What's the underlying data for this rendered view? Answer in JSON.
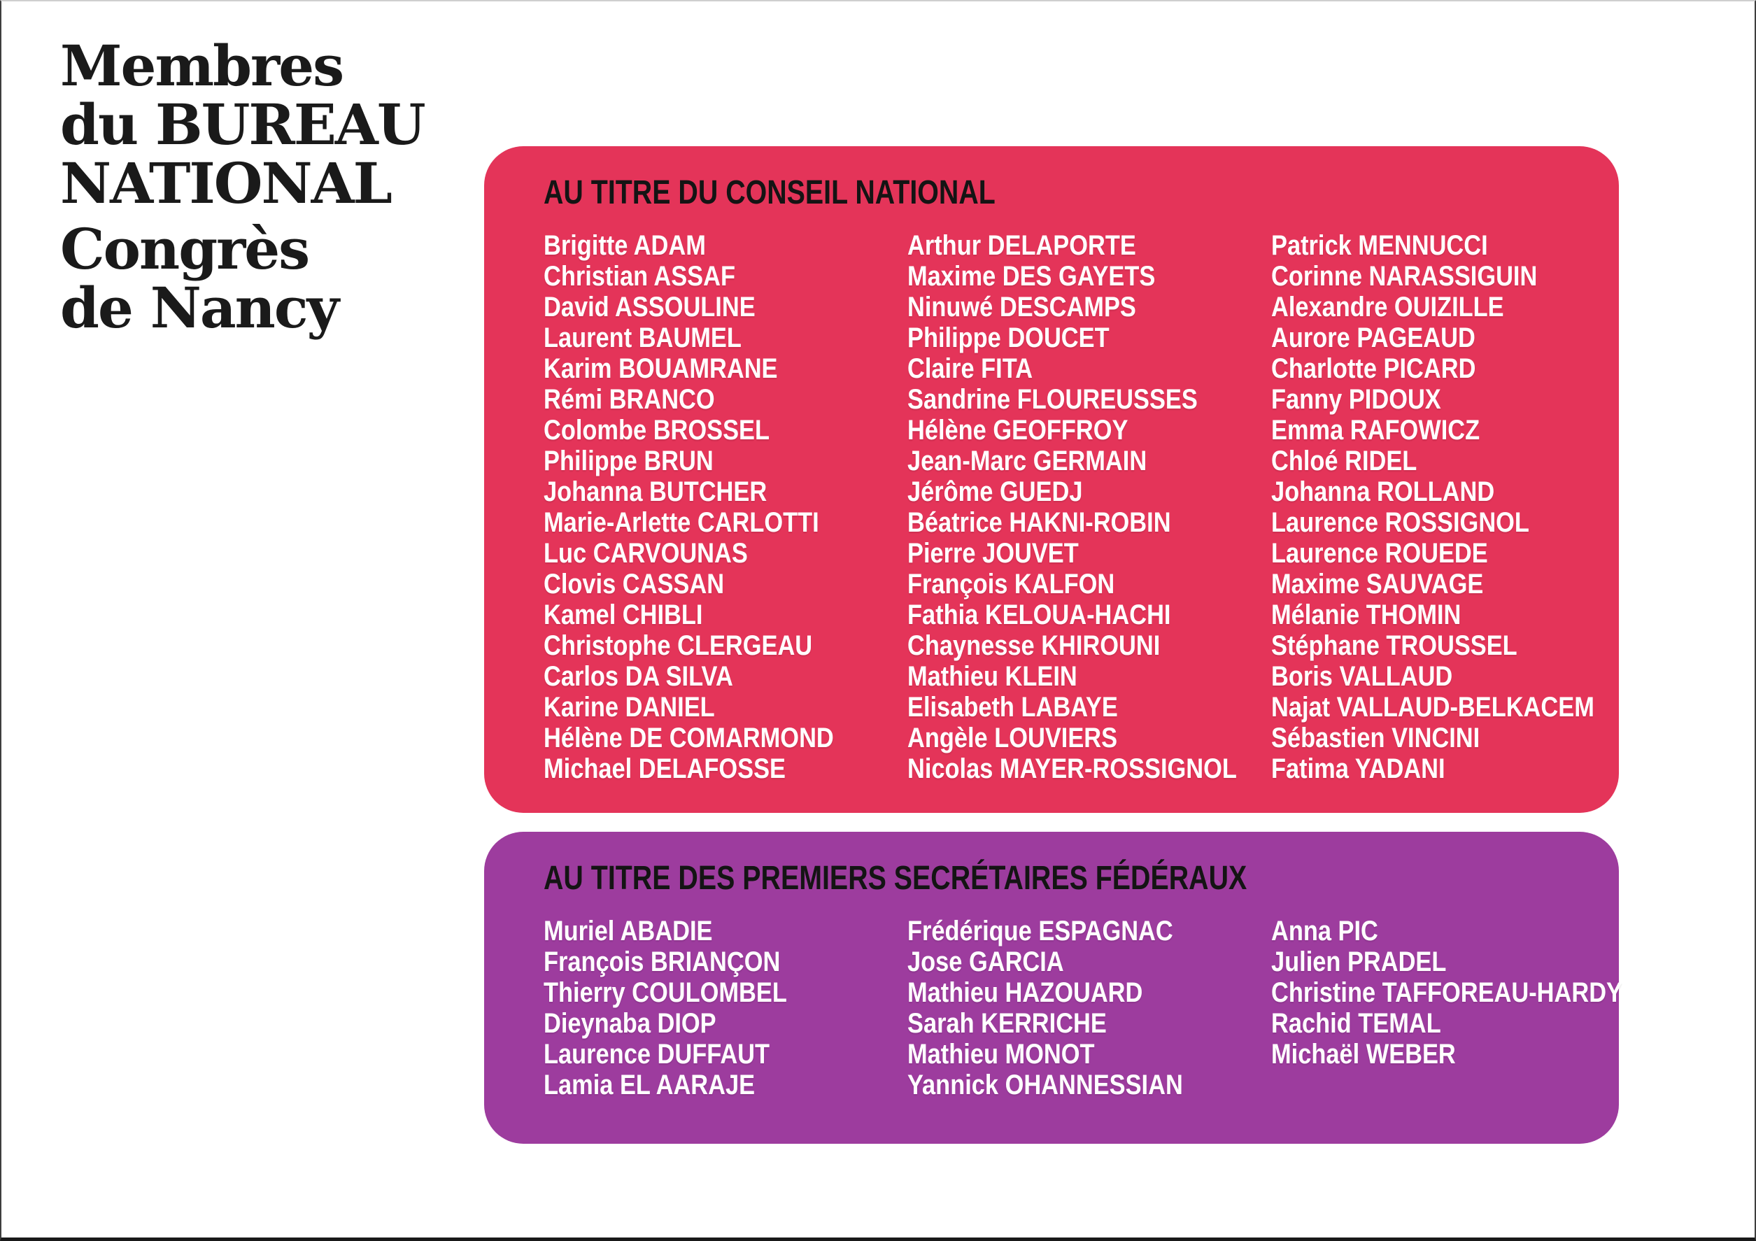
{
  "page": {
    "title_lines": [
      "Membres",
      "du BUREAU",
      "NATIONAL"
    ],
    "subtitle_lines": [
      "Congrès",
      "de Nancy"
    ]
  },
  "colors": {
    "background": "#ffffff",
    "title_text": "#1a1a1a",
    "heading_text": "#141414",
    "name_text": "#ffffff",
    "pink_panel": "#e43459",
    "purple_panel": "#9d3c9e",
    "frame": "#3e3e3e"
  },
  "sections": [
    {
      "id": "conseil-national",
      "heading": "AU TITRE DU CONSEIL NATIONAL",
      "panel_color": "#e43459",
      "columns": [
        [
          "Brigitte ADAM",
          "Christian ASSAF",
          "David ASSOULINE",
          "Laurent BAUMEL",
          "Karim BOUAMRANE",
          "Rémi BRANCO",
          "Colombe BROSSEL",
          "Philippe BRUN",
          "Johanna BUTCHER",
          "Marie-Arlette CARLOTTI",
          "Luc CARVOUNAS",
          "Clovis CASSAN",
          "Kamel CHIBLI",
          "Christophe CLERGEAU",
          "Carlos DA SILVA",
          "Karine DANIEL",
          "Hélène DE COMARMOND",
          "Michael DELAFOSSE"
        ],
        [
          "Arthur DELAPORTE",
          "Maxime DES GAYETS",
          "Ninuwé DESCAMPS",
          "Philippe DOUCET",
          "Claire FITA",
          "Sandrine FLOUREUSSES",
          "Hélène GEOFFROY",
          "Jean-Marc GERMAIN",
          "Jérôme GUEDJ",
          "Béatrice HAKNI-ROBIN",
          "Pierre JOUVET",
          "François KALFON",
          "Fathia KELOUA-HACHI",
          "Chaynesse KHIROUNI",
          "Mathieu KLEIN",
          "Elisabeth LABAYE",
          "Angèle LOUVIERS",
          "Nicolas MAYER-ROSSIGNOL"
        ],
        [
          "Patrick MENNUCCI",
          "Corinne NARASSIGUIN",
          "Alexandre OUIZILLE",
          "Aurore PAGEAUD",
          "Charlotte PICARD",
          "Fanny PIDOUX",
          "Emma RAFOWICZ",
          "Chloé RIDEL",
          "Johanna ROLLAND",
          "Laurence ROSSIGNOL",
          "Laurence ROUEDE",
          "Maxime SAUVAGE",
          "Mélanie THOMIN",
          "Stéphane TROUSSEL",
          "Boris VALLAUD",
          "Najat VALLAUD-BELKACEM",
          "Sébastien VINCINI",
          "Fatima YADANI"
        ]
      ]
    },
    {
      "id": "premiers-secretaires-federaux",
      "heading": "AU TITRE DES PREMIERS SECRÉTAIRES FÉDÉRAUX",
      "panel_color": "#9d3c9e",
      "columns": [
        [
          "Muriel ABADIE",
          "François BRIANÇON",
          "Thierry COULOMBEL",
          "Dieynaba DIOP",
          "Laurence DUFFAUT",
          "Lamia EL AARAJE"
        ],
        [
          "Frédérique ESPAGNAC",
          "Jose GARCIA",
          "Mathieu HAZOUARD",
          "Sarah KERRICHE",
          "Mathieu MONOT",
          "Yannick OHANNESSIAN"
        ],
        [
          "Anna PIC",
          "Julien PRADEL",
          "Christine TAFFOREAU-HARDY",
          "Rachid TEMAL",
          "Michaël WEBER"
        ]
      ]
    }
  ]
}
